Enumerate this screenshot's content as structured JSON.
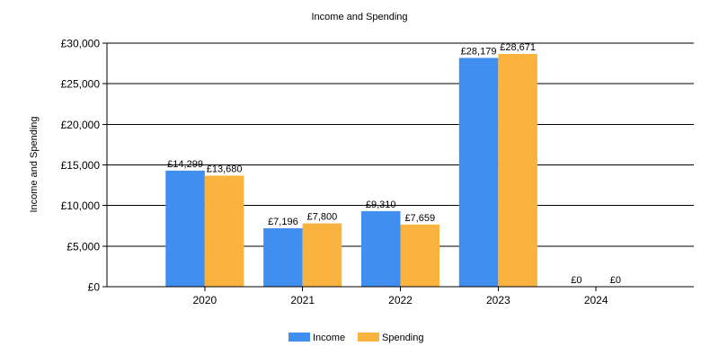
{
  "chart_data": {
    "type": "bar",
    "title": "Income and Spending",
    "xlabel": "",
    "ylabel": "Income and Spending",
    "categories": [
      "2020",
      "2021",
      "2022",
      "2023",
      "2024"
    ],
    "series": [
      {
        "name": "Income",
        "color": "#3f8ef0",
        "values": [
          14299,
          7196,
          9310,
          28179,
          0
        ],
        "labels": [
          "£14,299",
          "£7,196",
          "£9,310",
          "£28,179",
          "£0"
        ]
      },
      {
        "name": "Spending",
        "color": "#fbb33f",
        "values": [
          13680,
          7800,
          7659,
          28671,
          0
        ],
        "labels": [
          "£13,680",
          "£7,800",
          "£7,659",
          "£28,671",
          "£0"
        ]
      }
    ],
    "ylim": [
      0,
      30000
    ],
    "yticks": [
      0,
      5000,
      10000,
      15000,
      20000,
      25000,
      30000
    ],
    "ytick_labels": [
      "£0",
      "£5,000",
      "£10,000",
      "£15,000",
      "£20,000",
      "£25,000",
      "£30,000"
    ],
    "grid": true,
    "legend_position": "bottom-center"
  }
}
